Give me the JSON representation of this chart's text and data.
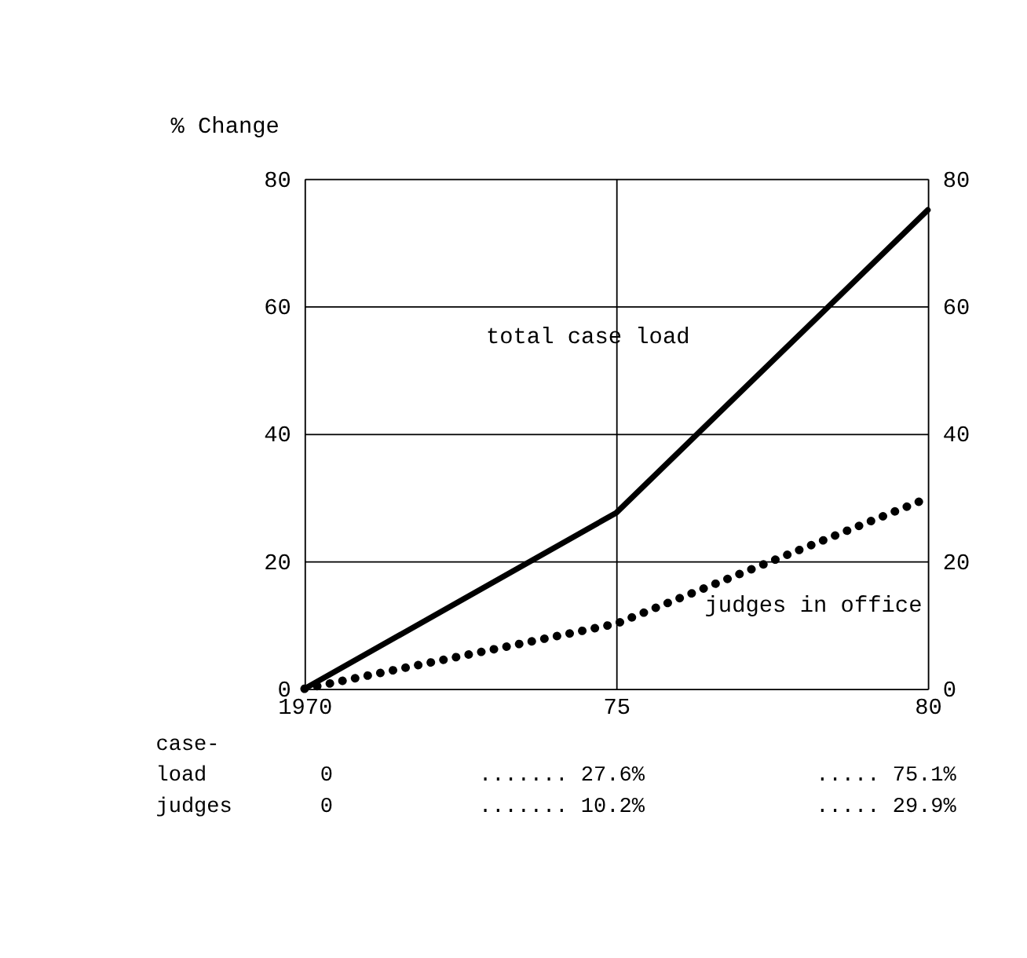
{
  "chart_data": {
    "type": "line",
    "ylabel": "% Change",
    "x": [
      1970,
      1975,
      1980
    ],
    "series": [
      {
        "name": "total case load",
        "color": "#000000",
        "values": [
          0,
          27.6,
          75.1
        ],
        "line_style": "solid"
      },
      {
        "name": "judges in office",
        "color": "#000000",
        "values": [
          0,
          10.2,
          29.9
        ],
        "line_style": "dotted"
      }
    ],
    "annotations": [
      "case-",
      "load",
      "0",
      "....... 27.6%",
      "..... 75.1%",
      "judges",
      "0",
      "....... 10.2%",
      "..... 29.9%"
    ],
    "xlim": [
      1970,
      1980
    ],
    "xticks": [
      1970,
      {
        "value": 1975,
        "label": "75"
      },
      {
        "value": 1980,
        "label": "80"
      }
    ],
    "ylim": [
      0,
      80
    ],
    "yticks": [
      0,
      20,
      40,
      60,
      80
    ],
    "y2lim": [
      0,
      80
    ],
    "y2ticks": [
      0,
      20,
      40,
      60,
      80
    ],
    "grid": true,
    "marker": "none"
  }
}
